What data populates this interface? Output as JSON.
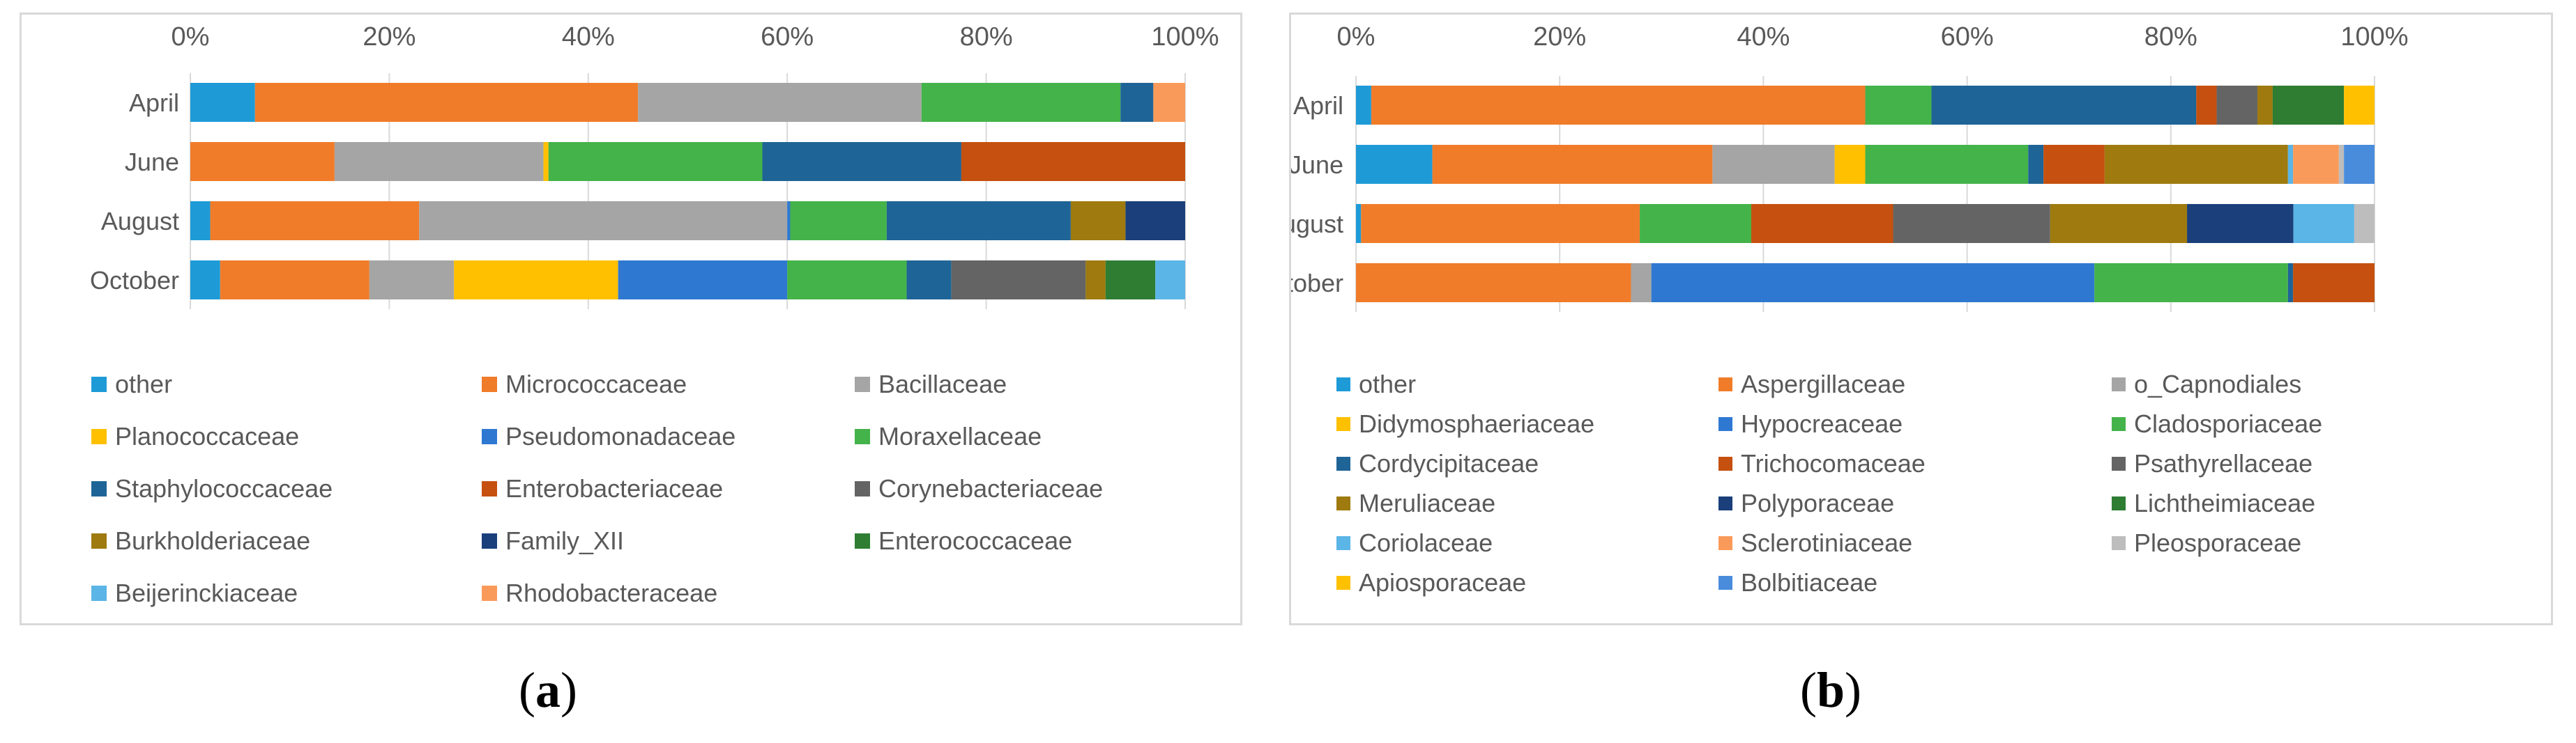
{
  "colors": {
    "other": "#1e9bd7",
    "orange": "#f07c2a",
    "gray": "#a5a5a5",
    "yellow": "#ffc000",
    "blue": "#2f78d2",
    "green": "#44b34a",
    "darkblue": "#1f6496",
    "rust": "#c5500f",
    "darkgray": "#646464",
    "olive": "#9e7a0f",
    "navy": "#1a3f7a",
    "darkgreen": "#2e7d32",
    "lightblue": "#5bb5e6",
    "salmon": "#fa9a5a",
    "lightgray": "#bdbdbd",
    "midblue": "#4a8cdc",
    "axis": "#595959",
    "grid": "#d9d9d9"
  },
  "labels": {
    "a": "a",
    "b": "b"
  },
  "chart_data": [
    {
      "type": "bar",
      "orientation": "horizontal",
      "stacked": "percent",
      "panel": "a",
      "categories": [
        "April",
        "June",
        "August",
        "October"
      ],
      "xlim": [
        0,
        100
      ],
      "x_ticks": [
        "0%",
        "20%",
        "40%",
        "60%",
        "80%",
        "100%"
      ],
      "legend_position": "bottom",
      "series": [
        {
          "name": "other",
          "color": "other",
          "values": [
            6.5,
            0,
            2,
            3
          ]
        },
        {
          "name": "Micrococcaceae",
          "color": "orange",
          "values": [
            38.5,
            14.5,
            21,
            15
          ]
        },
        {
          "name": "Bacillaceae",
          "color": "gray",
          "values": [
            28.5,
            21,
            37,
            8.5
          ]
        },
        {
          "name": "Planococcaceae",
          "color": "yellow",
          "values": [
            0,
            0.5,
            0,
            16.5
          ]
        },
        {
          "name": "Pseudomonadaceae",
          "color": "blue",
          "values": [
            0,
            0,
            0.3,
            17
          ]
        },
        {
          "name": "Moraxellaceae",
          "color": "green",
          "values": [
            20,
            21.5,
            9.7,
            12
          ]
        },
        {
          "name": "Staphylococcaceae",
          "color": "darkblue",
          "values": [
            3.3,
            20,
            18.5,
            4.5
          ]
        },
        {
          "name": "Enterobacteriaceae",
          "color": "rust",
          "values": [
            0,
            22.5,
            0,
            0
          ]
        },
        {
          "name": "Corynebacteriaceae",
          "color": "darkgray",
          "values": [
            0,
            0,
            0,
            13.5
          ]
        },
        {
          "name": "Burkholderiaceae",
          "color": "olive",
          "values": [
            0,
            0,
            5.5,
            2
          ]
        },
        {
          "name": "Family_XII",
          "color": "navy",
          "values": [
            0,
            0,
            6,
            0
          ]
        },
        {
          "name": "Enterococcaceae",
          "color": "darkgreen",
          "values": [
            0,
            0,
            0,
            5
          ]
        },
        {
          "name": "Beijerinckiaceae",
          "color": "lightblue",
          "values": [
            0,
            0,
            0,
            3
          ]
        },
        {
          "name": "Rhodobacteraceae",
          "color": "salmon",
          "values": [
            3.2,
            0,
            0,
            0
          ]
        }
      ]
    },
    {
      "type": "bar",
      "orientation": "horizontal",
      "stacked": "percent",
      "panel": "b",
      "categories": [
        "April",
        "June",
        "August",
        "October"
      ],
      "xlim": [
        0,
        100
      ],
      "x_ticks": [
        "0%",
        "20%",
        "40%",
        "60%",
        "80%",
        "100%"
      ],
      "legend_position": "bottom",
      "series": [
        {
          "name": "other",
          "color": "other",
          "values": [
            1.5,
            7.5,
            0.5,
            0
          ]
        },
        {
          "name": "Aspergillaceae",
          "color": "orange",
          "values": [
            48.5,
            27.5,
            27.5,
            27
          ]
        },
        {
          "name": "o_Capnodiales",
          "color": "gray",
          "values": [
            0,
            12,
            0,
            2
          ]
        },
        {
          "name": "Didymosphaeriaceae",
          "color": "yellow",
          "values": [
            0,
            3,
            0,
            0
          ]
        },
        {
          "name": "Hypocreaceae",
          "color": "blue",
          "values": [
            0,
            0,
            0,
            43.5
          ]
        },
        {
          "name": "Cladosporiaceae",
          "color": "green",
          "values": [
            6.5,
            16,
            11,
            19
          ]
        },
        {
          "name": "Cordycipitaceae",
          "color": "darkblue",
          "values": [
            26,
            1.5,
            0,
            0.5
          ]
        },
        {
          "name": "Trichocomaceae",
          "color": "rust",
          "values": [
            2,
            6,
            14,
            8
          ]
        },
        {
          "name": "Psathyrellaceae",
          "color": "darkgray",
          "values": [
            4,
            0,
            15.5,
            0
          ]
        },
        {
          "name": "Meruliaceae",
          "color": "olive",
          "values": [
            1.5,
            18,
            13.5,
            0
          ]
        },
        {
          "name": "Polyporaceae",
          "color": "navy",
          "values": [
            0,
            0,
            10.5,
            0
          ]
        },
        {
          "name": "Lichtheimiaceae",
          "color": "darkgreen",
          "values": [
            7,
            0,
            0,
            0
          ]
        },
        {
          "name": "Coriolaceae",
          "color": "lightblue",
          "values": [
            0,
            0.5,
            6,
            0
          ]
        },
        {
          "name": "Sclerotiniaceae",
          "color": "salmon",
          "values": [
            0,
            4.5,
            0,
            0
          ]
        },
        {
          "name": "Pleosporaceae",
          "color": "lightgray",
          "values": [
            0,
            0.5,
            2,
            0
          ]
        },
        {
          "name": "Apiosporaceae",
          "color": "yellow",
          "values": [
            3,
            0,
            0,
            0
          ]
        },
        {
          "name": "Bolbitiaceae",
          "color": "midblue",
          "values": [
            0,
            3,
            0,
            0
          ]
        }
      ]
    }
  ]
}
